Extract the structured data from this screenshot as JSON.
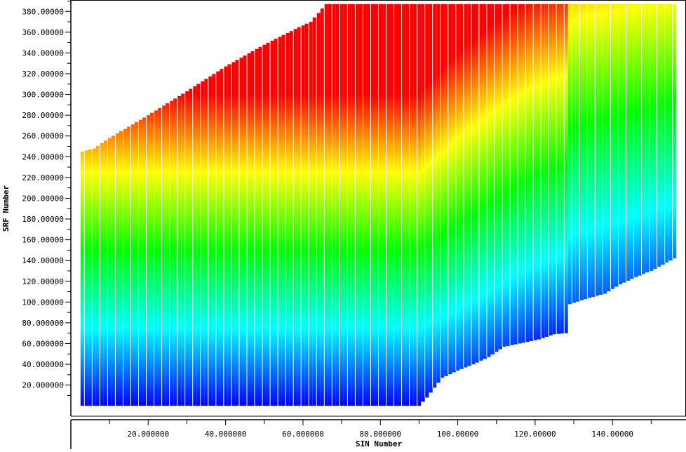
{
  "chart_data": {
    "type": "heatmap",
    "title": "",
    "xlabel": "SIN Number",
    "ylabel": "SRF Number",
    "xlim": [
      0,
      159
    ],
    "ylim": [
      -10,
      391
    ],
    "x_ticks": [
      {
        "value": 20,
        "label": "20.000000"
      },
      {
        "value": 40,
        "label": "40.000000"
      },
      {
        "value": 60,
        "label": "60.000000"
      },
      {
        "value": 80,
        "label": "80.000000"
      },
      {
        "value": 100,
        "label": "100.00000"
      },
      {
        "value": 120,
        "label": "120.00000"
      },
      {
        "value": 140,
        "label": "140.00000"
      }
    ],
    "x_minor_step": 10,
    "y_ticks": [
      {
        "value": 20,
        "label": "20.000000"
      },
      {
        "value": 40,
        "label": "40.000000"
      },
      {
        "value": 60,
        "label": "60.000000"
      },
      {
        "value": 80,
        "label": "80.000000"
      },
      {
        "value": 100,
        "label": "100.00000"
      },
      {
        "value": 120,
        "label": "120.00000"
      },
      {
        "value": 140,
        "label": "140.00000"
      },
      {
        "value": 160,
        "label": "160.00000"
      },
      {
        "value": 180,
        "label": "180.00000"
      },
      {
        "value": 200,
        "label": "200.00000"
      },
      {
        "value": 220,
        "label": "220.00000"
      },
      {
        "value": 240,
        "label": "240.00000"
      },
      {
        "value": 260,
        "label": "260.00000"
      },
      {
        "value": 280,
        "label": "280.00000"
      },
      {
        "value": 300,
        "label": "300.00000"
      },
      {
        "value": 320,
        "label": "320.00000"
      },
      {
        "value": 340,
        "label": "340.00000"
      },
      {
        "value": 360,
        "label": "360.00000"
      },
      {
        "value": 380,
        "label": "380.00000"
      }
    ],
    "y_minor_step": 10,
    "grid": false,
    "colormap": [
      "#0000ff",
      "#00ffff",
      "#00ff00",
      "#ffff00",
      "#ff0000"
    ],
    "columns": {
      "x_start": 3,
      "x_end": 156,
      "count": 154,
      "gap_color": "#ffffff"
    },
    "coverage_bottom": [
      {
        "x": 3,
        "y": 0
      },
      {
        "x": 90,
        "y": 0
      },
      {
        "x": 92,
        "y": 8
      },
      {
        "x": 96,
        "y": 27
      },
      {
        "x": 100,
        "y": 34
      },
      {
        "x": 104,
        "y": 40
      },
      {
        "x": 108,
        "y": 47
      },
      {
        "x": 112,
        "y": 57
      },
      {
        "x": 116,
        "y": 60
      },
      {
        "x": 121,
        "y": 64
      },
      {
        "x": 125,
        "y": 69
      },
      {
        "x": 128,
        "y": 70
      },
      {
        "x": 129,
        "y": 98
      },
      {
        "x": 134,
        "y": 104
      },
      {
        "x": 138,
        "y": 108
      },
      {
        "x": 142,
        "y": 117
      },
      {
        "x": 146,
        "y": 124
      },
      {
        "x": 150,
        "y": 130
      },
      {
        "x": 153,
        "y": 136
      },
      {
        "x": 156,
        "y": 142
      }
    ],
    "coverage_top": [
      {
        "x": 3,
        "y": 245
      },
      {
        "x": 6,
        "y": 248
      },
      {
        "x": 10,
        "y": 258
      },
      {
        "x": 20,
        "y": 280
      },
      {
        "x": 30,
        "y": 303
      },
      {
        "x": 40,
        "y": 327
      },
      {
        "x": 50,
        "y": 348
      },
      {
        "x": 58,
        "y": 363
      },
      {
        "x": 62,
        "y": 370
      },
      {
        "x": 66,
        "y": 387
      },
      {
        "x": 156,
        "y": 387
      }
    ],
    "color_value_curve": [
      {
        "x": 3,
        "lo": 0,
        "hi": 300
      },
      {
        "x": 90,
        "lo": 0,
        "hi": 300
      },
      {
        "x": 100,
        "lo": 10,
        "hi": 340
      },
      {
        "x": 110,
        "lo": 30,
        "hi": 370
      },
      {
        "x": 120,
        "lo": 50,
        "hi": 395
      },
      {
        "x": 128,
        "lo": 60,
        "hi": 405
      },
      {
        "x": 129,
        "lo": 60,
        "hi": 475
      },
      {
        "x": 156,
        "lo": 95,
        "hi": 490
      }
    ]
  }
}
